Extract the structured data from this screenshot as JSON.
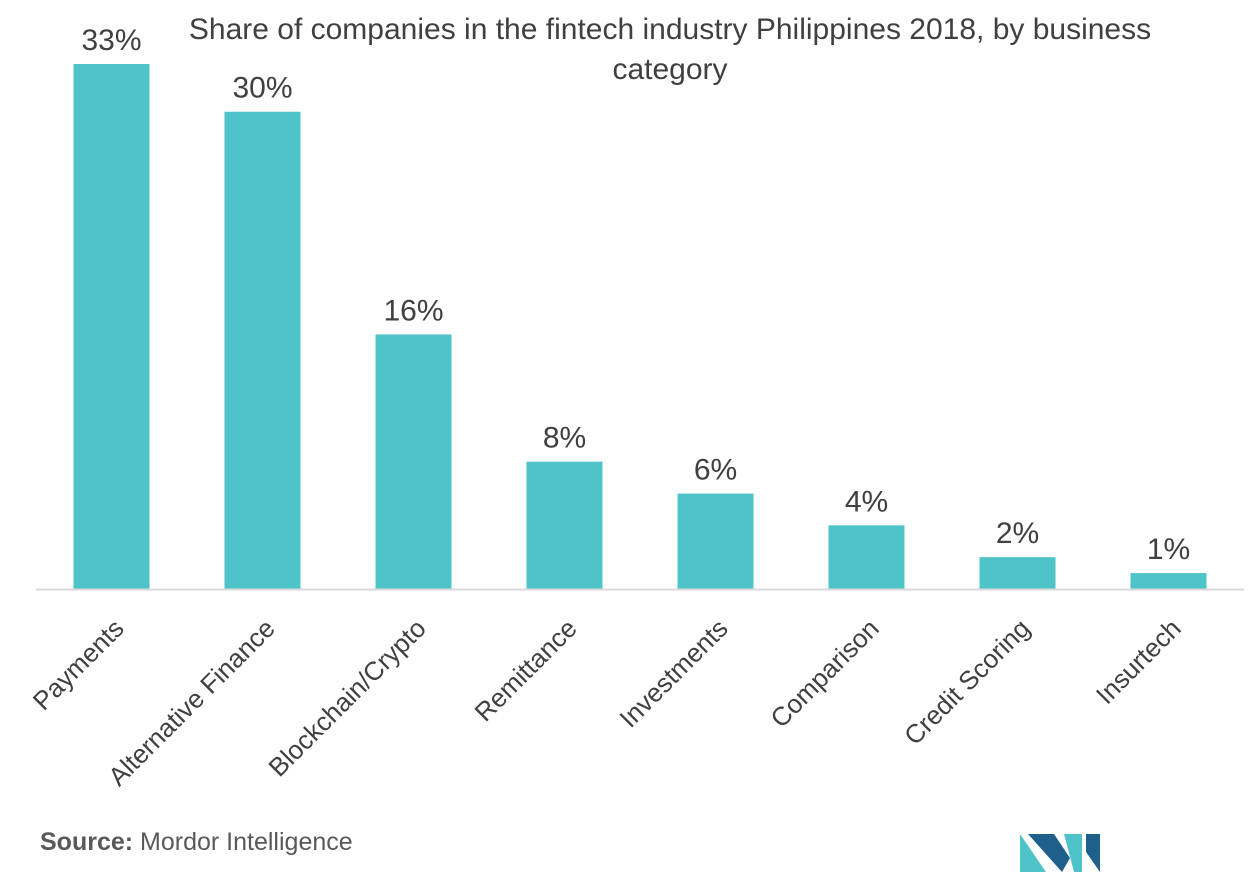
{
  "title": "Share of companies in the fintech industry Philippines 2018, by business category",
  "source": {
    "label": "Source:",
    "value": "Mordor Intelligence"
  },
  "logo": {
    "name": "mordor-intelligence-logo-icon"
  },
  "colors": {
    "bar": "#4fc4c8",
    "axis": "#d9d9d9",
    "text": "#404040",
    "logo_dark": "#1f5f8b",
    "logo_light": "#4fc4c8"
  },
  "chart_data": {
    "type": "bar",
    "title": "Share of companies in the fintech industry Philippines 2018, by business category",
    "xlabel": "",
    "ylabel": "",
    "unit": "%",
    "categories": [
      "Payments",
      "Alternative Finance",
      "Blockchain/Crypto",
      "Remittance",
      "Investments",
      "Comparison",
      "Credit Scoring",
      "Insurtech"
    ],
    "values": [
      33,
      30,
      16,
      8,
      6,
      4,
      2,
      1
    ],
    "data_labels": [
      "33%",
      "30%",
      "16%",
      "8%",
      "6%",
      "4%",
      "2%",
      "1%"
    ],
    "ylim": [
      0,
      33
    ],
    "grid": false,
    "legend": "none"
  }
}
